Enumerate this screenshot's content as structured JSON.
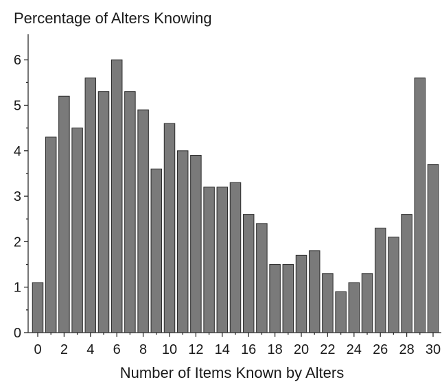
{
  "chart_data": {
    "type": "bar",
    "title": "Percentage of Alters Knowing",
    "xlabel": "Number of Items Known by Alters",
    "ylabel": "",
    "ylim": [
      0,
      6.5
    ],
    "yticks": [
      0,
      1,
      2,
      3,
      4,
      5,
      6
    ],
    "xtick_labels": [
      "0",
      "2",
      "4",
      "6",
      "8",
      "10",
      "12",
      "14",
      "16",
      "18",
      "20",
      "22",
      "24",
      "26",
      "28",
      "30"
    ],
    "categories": [
      0,
      1,
      2,
      3,
      4,
      5,
      6,
      7,
      8,
      9,
      10,
      11,
      12,
      13,
      14,
      15,
      16,
      17,
      18,
      19,
      20,
      21,
      22,
      23,
      24,
      25,
      26,
      27,
      28,
      29,
      30
    ],
    "values": [
      1.1,
      4.3,
      5.2,
      4.5,
      5.6,
      5.3,
      6.0,
      5.3,
      4.9,
      3.6,
      4.6,
      4.0,
      3.9,
      3.2,
      3.2,
      3.3,
      2.6,
      2.4,
      1.5,
      1.5,
      1.7,
      1.8,
      1.3,
      0.9,
      1.1,
      1.3,
      2.3,
      2.1,
      2.6,
      5.6,
      3.7
    ],
    "grid": false,
    "bar_color": "#7a7a7a"
  }
}
